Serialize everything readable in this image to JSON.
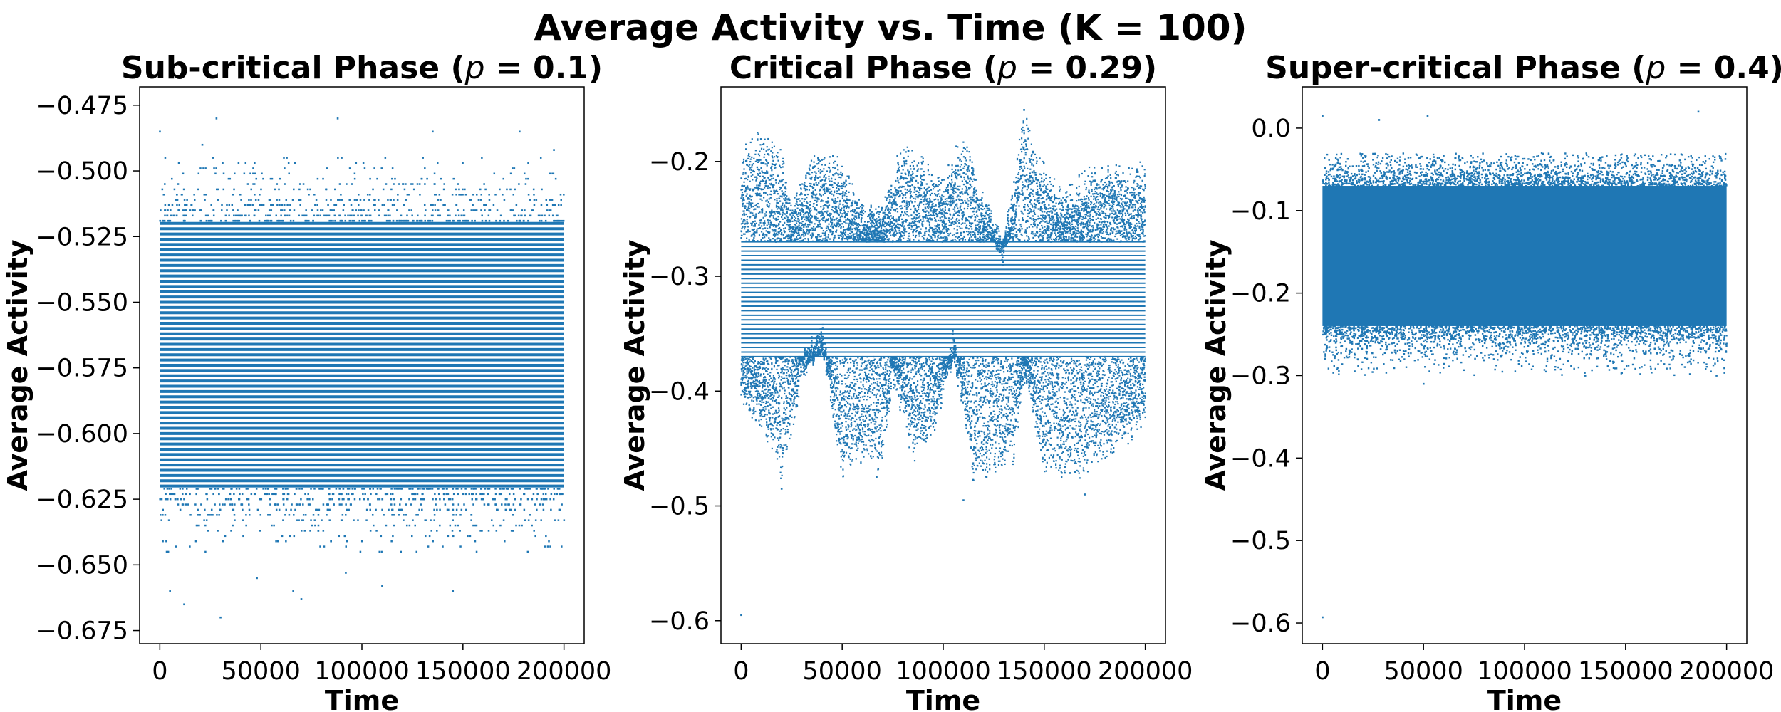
{
  "figure_title": "Average Activity vs. Time (K = 100)",
  "colors": {
    "marker": "#1f77b4",
    "axis": "#000000",
    "background": "#ffffff"
  },
  "chart_data": [
    {
      "type": "scatter",
      "title": "Sub-critical Phase (p = 0.1)",
      "title_prefix": "Sub-critical Phase (",
      "title_symbol": "p",
      "title_suffix": " = 0.1)",
      "xlabel": "Time",
      "ylabel": "Average Activity",
      "xlim": [
        -10000,
        210000
      ],
      "ylim": [
        -0.68,
        -0.468
      ],
      "xticks": [
        0,
        50000,
        100000,
        150000,
        200000
      ],
      "xtick_labels": [
        "0",
        "50000",
        "100000",
        "150000",
        "200000"
      ],
      "yticks": [
        -0.675,
        -0.65,
        -0.625,
        -0.6,
        -0.575,
        -0.55,
        -0.525,
        -0.5,
        -0.475
      ],
      "ytick_labels": [
        "−0.675",
        "−0.650",
        "−0.625",
        "−0.600",
        "−0.575",
        "−0.550",
        "−0.525",
        "−0.500",
        "−0.475"
      ],
      "dense_band": [
        -0.62,
        -0.52
      ],
      "sparse_range": [
        -0.645,
        -0.495
      ],
      "level_step": 0.002,
      "outliers": [
        [
          0,
          -0.485
        ],
        [
          5000,
          -0.66
        ],
        [
          12000,
          -0.665
        ],
        [
          21000,
          -0.49
        ],
        [
          28000,
          -0.48
        ],
        [
          30000,
          -0.67
        ],
        [
          48000,
          -0.655
        ],
        [
          66000,
          -0.66
        ],
        [
          70000,
          -0.663
        ],
        [
          88000,
          -0.48
        ],
        [
          92000,
          -0.653
        ],
        [
          110000,
          -0.658
        ],
        [
          135000,
          -0.485
        ],
        [
          145000,
          -0.66
        ],
        [
          178000,
          -0.485
        ],
        [
          195000,
          -0.492
        ]
      ]
    },
    {
      "type": "scatter",
      "title": "Critical Phase (p = 0.29)",
      "title_prefix": "Critical Phase (",
      "title_symbol": "p",
      "title_suffix": " = 0.29)",
      "xlabel": "Time",
      "ylabel": "Average Activity",
      "xlim": [
        -10000,
        210000
      ],
      "ylim": [
        -0.62,
        -0.135
      ],
      "xticks": [
        0,
        50000,
        100000,
        150000,
        200000
      ],
      "xtick_labels": [
        "0",
        "50000",
        "100000",
        "150000",
        "200000"
      ],
      "yticks": [
        -0.6,
        -0.5,
        -0.4,
        -0.3,
        -0.2
      ],
      "ytick_labels": [
        "−0.6",
        "−0.5",
        "−0.4",
        "−0.3",
        "−0.2"
      ],
      "dense_band": [
        -0.37,
        -0.27
      ],
      "level_step": 0.004,
      "envelope_upper": [
        [
          0,
          -0.2
        ],
        [
          10000,
          -0.18
        ],
        [
          20000,
          -0.2
        ],
        [
          25000,
          -0.25
        ],
        [
          35000,
          -0.2
        ],
        [
          50000,
          -0.21
        ],
        [
          60000,
          -0.25
        ],
        [
          70000,
          -0.25
        ],
        [
          80000,
          -0.19
        ],
        [
          90000,
          -0.21
        ],
        [
          100000,
          -0.23
        ],
        [
          110000,
          -0.18
        ],
        [
          120000,
          -0.24
        ],
        [
          130000,
          -0.28
        ],
        [
          140000,
          -0.16
        ],
        [
          145000,
          -0.2
        ],
        [
          160000,
          -0.24
        ],
        [
          175000,
          -0.21
        ],
        [
          190000,
          -0.22
        ],
        [
          200000,
          -0.21
        ]
      ],
      "envelope_lower": [
        [
          0,
          -0.4
        ],
        [
          10000,
          -0.42
        ],
        [
          20000,
          -0.47
        ],
        [
          30000,
          -0.38
        ],
        [
          40000,
          -0.35
        ],
        [
          50000,
          -0.47
        ],
        [
          60000,
          -0.45
        ],
        [
          70000,
          -0.46
        ],
        [
          75000,
          -0.38
        ],
        [
          85000,
          -0.45
        ],
        [
          95000,
          -0.43
        ],
        [
          105000,
          -0.36
        ],
        [
          115000,
          -0.47
        ],
        [
          125000,
          -0.46
        ],
        [
          135000,
          -0.45
        ],
        [
          140000,
          -0.38
        ],
        [
          150000,
          -0.46
        ],
        [
          165000,
          -0.47
        ],
        [
          180000,
          -0.45
        ],
        [
          200000,
          -0.42
        ]
      ],
      "outliers": [
        [
          0,
          -0.595
        ],
        [
          20000,
          -0.485
        ],
        [
          67000,
          -0.475
        ],
        [
          110000,
          -0.495
        ],
        [
          140000,
          -0.155
        ],
        [
          170000,
          -0.49
        ]
      ]
    },
    {
      "type": "scatter",
      "title": "Super-critical Phase (p = 0.4)",
      "title_prefix": "Super-critical Phase (",
      "title_symbol": "p",
      "title_suffix": " = 0.4)",
      "xlabel": "Time",
      "ylabel": "Average Activity",
      "xlim": [
        -10000,
        210000
      ],
      "ylim": [
        -0.625,
        0.05
      ],
      "xticks": [
        0,
        50000,
        100000,
        150000,
        200000
      ],
      "xtick_labels": [
        "0",
        "50000",
        "100000",
        "150000",
        "200000"
      ],
      "yticks": [
        -0.6,
        -0.5,
        -0.4,
        -0.3,
        -0.2,
        -0.1,
        0.0
      ],
      "ytick_labels": [
        "−0.6",
        "−0.5",
        "−0.4",
        "−0.3",
        "−0.2",
        "−0.1",
        "0.0"
      ],
      "dense_band": [
        -0.24,
        -0.07
      ],
      "scatter_range": [
        -0.3,
        -0.03
      ],
      "outliers": [
        [
          0,
          -0.593
        ],
        [
          0,
          0.015
        ],
        [
          28000,
          0.01
        ],
        [
          52000,
          0.015
        ],
        [
          186000,
          0.02
        ],
        [
          50000,
          -0.31
        ],
        [
          130000,
          -0.3
        ],
        [
          195000,
          -0.3
        ]
      ]
    }
  ]
}
